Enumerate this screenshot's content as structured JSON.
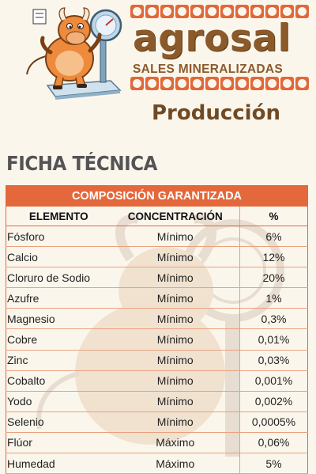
{
  "brand": {
    "name": "agrosal",
    "tagline": "SALES MINERALIZADAS",
    "product_line": "Producción"
  },
  "colors": {
    "accent": "#e3683b",
    "brand_brown": "#8b5a2b",
    "heading_gray": "#545454"
  },
  "sheet": {
    "title": "FICHA TÉCNICA",
    "table": {
      "caption": "COMPOSICIÓN GARANTIZADA",
      "headers": [
        "ELEMENTO",
        "CONCENTRACIÓN",
        "%"
      ],
      "rows": [
        [
          "Fósforo",
          "Mínimo",
          "6%"
        ],
        [
          "Calcio",
          "Mínimo",
          "12%"
        ],
        [
          "Cloruro de Sodio",
          "Mínimo",
          "20%"
        ],
        [
          "Azufre",
          "Mínimo",
          "1%"
        ],
        [
          "Magnesio",
          "Mínimo",
          "0,3%"
        ],
        [
          "Cobre",
          "Mínimo",
          "0,01%"
        ],
        [
          "Zinc",
          "Mínimo",
          "0,03%"
        ],
        [
          "Cobalto",
          "Mínimo",
          "0,001%"
        ],
        [
          "Yodo",
          "Mínimo",
          "0,002%"
        ],
        [
          "Selenio",
          "Mínimo",
          "0,0005%"
        ],
        [
          "Flúor",
          "Máximo",
          "0,06%"
        ],
        [
          "Humedad",
          "Máximo",
          "5%"
        ]
      ]
    }
  },
  "images": {
    "mascot": "bull-mascot-on-scale",
    "watermark": "bull-mascot-watermark"
  }
}
